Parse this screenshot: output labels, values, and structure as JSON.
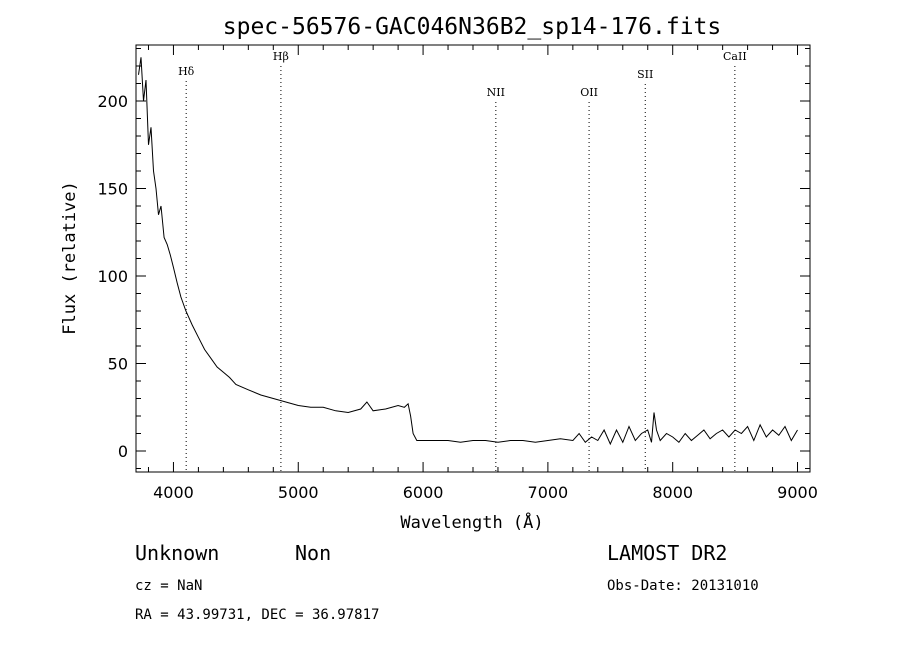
{
  "chart_data": {
    "type": "line",
    "title": "spec-56576-GAC046N36B2_sp14-176.fits",
    "xlabel": "Wavelength (Å)",
    "ylabel": "Flux (relative)",
    "xlim": [
      3700,
      9100
    ],
    "ylim": [
      -12,
      232
    ],
    "xticks": [
      4000,
      5000,
      6000,
      7000,
      8000,
      9000
    ],
    "yticks": [
      0,
      50,
      100,
      150,
      200
    ],
    "grid": false,
    "series": [
      {
        "x": [
          3720,
          3740,
          3760,
          3780,
          3800,
          3820,
          3840,
          3860,
          3880,
          3900,
          3925,
          3950,
          3975,
          4000,
          4030,
          4060,
          4100,
          4150,
          4200,
          4250,
          4300,
          4350,
          4400,
          4450,
          4500,
          4600,
          4700,
          4800,
          4900,
          5000,
          5100,
          5200,
          5300,
          5400,
          5500,
          5550,
          5600,
          5700,
          5800,
          5850,
          5880,
          5900,
          5920,
          5950,
          6000,
          6100,
          6200,
          6300,
          6400,
          6500,
          6600,
          6700,
          6800,
          6900,
          7000,
          7100,
          7200,
          7250,
          7300,
          7350,
          7400,
          7450,
          7500,
          7550,
          7600,
          7650,
          7700,
          7750,
          7800,
          7830,
          7850,
          7870,
          7900,
          7950,
          8000,
          8050,
          8100,
          8150,
          8200,
          8250,
          8300,
          8350,
          8400,
          8450,
          8500,
          8550,
          8600,
          8650,
          8700,
          8750,
          8800,
          8850,
          8900,
          8950,
          9000
        ],
        "y": [
          215,
          225,
          200,
          212,
          175,
          185,
          160,
          150,
          135,
          140,
          122,
          118,
          112,
          105,
          96,
          88,
          80,
          72,
          65,
          58,
          53,
          48,
          45,
          42,
          38,
          35,
          32,
          30,
          28,
          26,
          25,
          25,
          23,
          22,
          24,
          28,
          23,
          24,
          26,
          25,
          27,
          20,
          10,
          6,
          6,
          6,
          6,
          5,
          6,
          6,
          5,
          6,
          6,
          5,
          6,
          7,
          6,
          10,
          5,
          8,
          6,
          12,
          4,
          12,
          5,
          14,
          6,
          10,
          12,
          5,
          22,
          12,
          6,
          10,
          8,
          5,
          10,
          6,
          9,
          12,
          7,
          10,
          12,
          8,
          12,
          10,
          14,
          6,
          15,
          8,
          12,
          9,
          14,
          6,
          12
        ]
      }
    ],
    "lines": [
      {
        "label": "Hδ",
        "x": 4102
      },
      {
        "label": "Hβ",
        "x": 4861
      },
      {
        "label": "NII",
        "x": 6583
      },
      {
        "label": "OII",
        "x": 7330
      },
      {
        "label": "SII",
        "x": 7780
      },
      {
        "label": "CaII",
        "x": 8498
      }
    ]
  },
  "info": {
    "class": "Unknown",
    "subclass": "Non",
    "cz": "cz = NaN",
    "coords": "RA =  43.99731, DEC =  36.97817",
    "survey": "LAMOST DR2",
    "obs_date": "Obs-Date: 20131010"
  }
}
